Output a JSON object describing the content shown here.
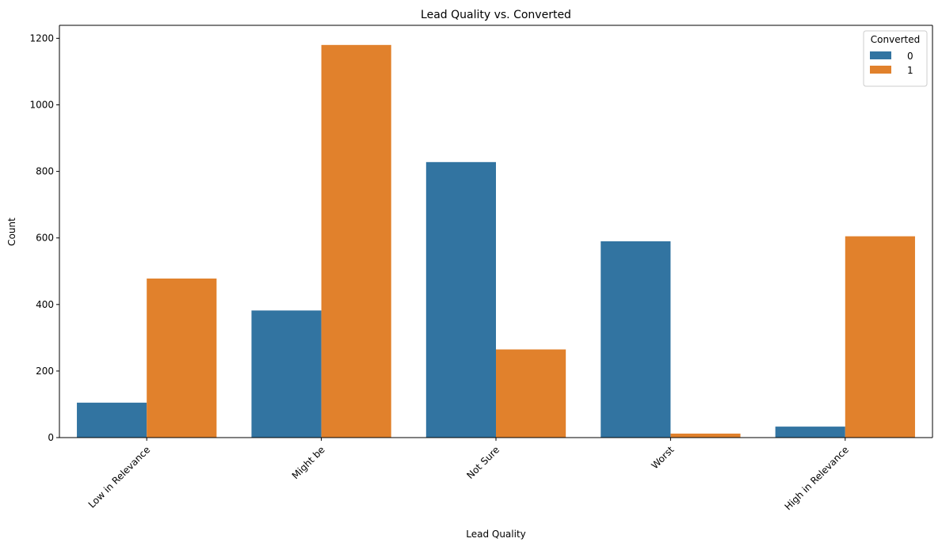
{
  "chart_data": {
    "type": "bar",
    "title": "Lead Quality vs. Converted",
    "xlabel": "Lead Quality",
    "ylabel": "Count",
    "categories": [
      "Low in Relevance",
      "Might be",
      "Not Sure",
      "Worst",
      "High in Relevance"
    ],
    "series": [
      {
        "name": "0",
        "color": "#3274a1",
        "values": [
          105,
          382,
          828,
          590,
          33
        ]
      },
      {
        "name": "1",
        "color": "#e1812c",
        "values": [
          478,
          1180,
          265,
          12,
          605
        ]
      }
    ],
    "ylim": [
      0,
      1239
    ],
    "yticks": [
      0,
      200,
      400,
      600,
      800,
      1000,
      1200
    ],
    "grid": false,
    "legend": {
      "title": "Converted",
      "placement": "top-right"
    }
  }
}
